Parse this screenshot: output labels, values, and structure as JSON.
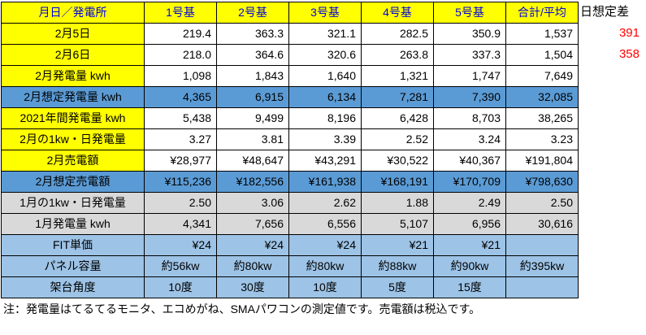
{
  "colors": {
    "header_bg": "#FFFF00",
    "header_text": "#0000E0",
    "assumed_row_bg": "#5B9BD5",
    "january_row_bg": "#D9D9D9",
    "spec_row_bg": "#9DC3E6",
    "diff_text": "#FF0000"
  },
  "table": {
    "header_label": "月日／発電所",
    "columns": [
      "1号基",
      "2号基",
      "3号基",
      "4号基",
      "5号基",
      "合計/平均"
    ],
    "rows": [
      {
        "label": "2月5日",
        "style": "plain",
        "align": "right",
        "values": [
          "219.4",
          "363.3",
          "321.1",
          "282.5",
          "350.9",
          "1,537"
        ]
      },
      {
        "label": "2月6日",
        "style": "plain",
        "align": "right",
        "values": [
          "218.0",
          "364.6",
          "320.6",
          "263.8",
          "337.3",
          "1,504"
        ]
      },
      {
        "label": "2月発電量 kwh",
        "style": "plain",
        "align": "right",
        "values": [
          "1,098",
          "1,843",
          "1,640",
          "1,321",
          "1,747",
          "7,649"
        ]
      },
      {
        "label": "2月想定発電量 kwh",
        "style": "blue",
        "align": "right",
        "values": [
          "4,365",
          "6,915",
          "6,134",
          "7,281",
          "7,390",
          "32,085"
        ]
      },
      {
        "label": "2021年間発電量 kwh",
        "style": "plain",
        "align": "right",
        "values": [
          "5,438",
          "9,499",
          "8,196",
          "6,428",
          "8,703",
          "38,265"
        ]
      },
      {
        "label": "2月の1kw・日発電量",
        "style": "plain",
        "align": "right",
        "values": [
          "3.27",
          "3.81",
          "3.39",
          "2.52",
          "3.24",
          "3.23"
        ]
      },
      {
        "label": "2月売電額",
        "style": "plain",
        "align": "right",
        "values": [
          "¥28,977",
          "¥48,647",
          "¥43,291",
          "¥30,522",
          "¥40,367",
          "¥191,804"
        ]
      },
      {
        "label": "2月想定売電額",
        "style": "blue",
        "align": "right",
        "values": [
          "¥115,236",
          "¥182,556",
          "¥161,938",
          "¥168,191",
          "¥170,709",
          "¥798,630"
        ]
      },
      {
        "label": "1月の1kw・日発電量",
        "style": "gray",
        "align": "right",
        "values": [
          "2.50",
          "3.06",
          "2.62",
          "1.88",
          "2.49",
          "2.50"
        ]
      },
      {
        "label": "1月発電量 kwh",
        "style": "gray",
        "align": "right",
        "values": [
          "4,341",
          "7,656",
          "6,556",
          "5,107",
          "6,956",
          "30,616"
        ]
      },
      {
        "label": "FIT単価",
        "style": "lightblue",
        "align": "right",
        "values": [
          "¥24",
          "¥24",
          "¥24",
          "¥21",
          "¥21",
          ""
        ]
      },
      {
        "label": "パネル容量",
        "style": "lightblue",
        "align": "center",
        "values": [
          "約56kw",
          "約80kw",
          "約80kw",
          "約88kw",
          "約90kw",
          "約395kw"
        ]
      },
      {
        "label": "架台角度",
        "style": "lightblue",
        "align": "center",
        "values": [
          "10度",
          "30度",
          "10度",
          "5度",
          "15度",
          ""
        ]
      }
    ]
  },
  "side_panel": {
    "title": "日想定差",
    "diff_values": [
      "391",
      "358"
    ]
  },
  "note": "注：発電量はてるてるモニタ、エコめがね、SMAパワコンの測定値です。売電額は税込です。"
}
